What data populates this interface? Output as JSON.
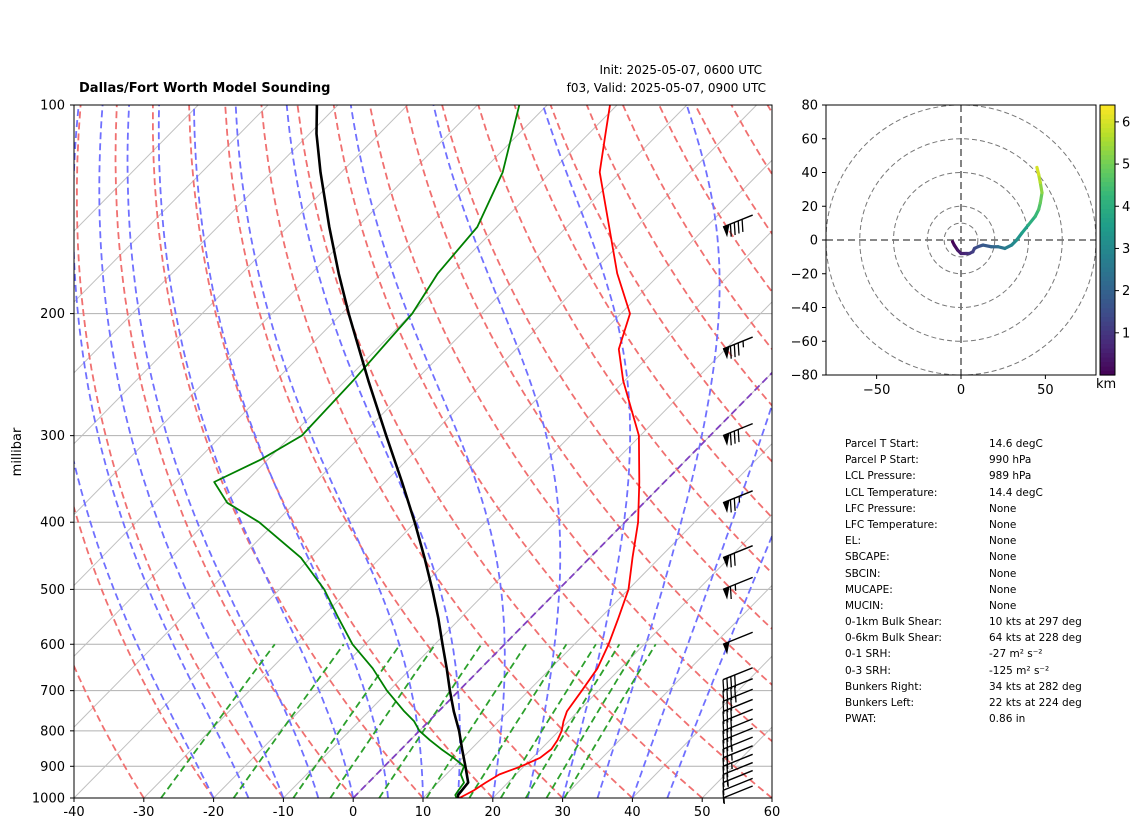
{
  "header": {
    "title": "Dallas/Fort Worth Model Sounding",
    "init": "Init: 2025-05-07, 0600 UTC",
    "valid": "f03, Valid: 2025-05-07, 0900 UTC"
  },
  "colors": {
    "temperature": "#ff0000",
    "dewpoint": "#008000",
    "parcel": "#000000",
    "dry_adiabat": "#f07070",
    "moist_adiabat": "#7070ff",
    "mixing_ratio": "#2ca02c",
    "isotherm": "#c0c0c0",
    "freezing": "#8040c0"
  },
  "chart_data": [
    {
      "type": "line",
      "subtype": "skew-t log-p",
      "title": "Dallas/Fort Worth Model Sounding",
      "xlabel": "",
      "ylabel": "millibar",
      "xlim": [
        -40,
        60
      ],
      "ylim": [
        1000,
        100
      ],
      "yscale": "log",
      "x_ticks": [
        -40,
        -30,
        -20,
        -10,
        0,
        10,
        20,
        30,
        40,
        50,
        60
      ],
      "y_ticks": [
        1000,
        900,
        800,
        700,
        600,
        500,
        400,
        300,
        200,
        100
      ],
      "grid": true,
      "series": [
        {
          "variable": "temperature",
          "pressure": [
            1000,
            990,
            975,
            950,
            925,
            900,
            875,
            850,
            825,
            800,
            775,
            750,
            700,
            650,
            600,
            550,
            500,
            450,
            400,
            350,
            300,
            250,
            225,
            200,
            175,
            150,
            125,
            110,
            100
          ],
          "values": [
            15.2,
            15.6,
            16.2,
            16.8,
            17.6,
            19.6,
            21.1,
            21.5,
            21.1,
            20.4,
            19.3,
            18.4,
            17.6,
            16.7,
            14.9,
            12.6,
            10.0,
            6.1,
            1.9,
            -3.6,
            -10.2,
            -20.2,
            -25.3,
            -28.7,
            -36.2,
            -43.9,
            -53.0,
            -57.6,
            -61.0
          ]
        },
        {
          "variable": "dewpoint",
          "pressure": [
            1000,
            990,
            975,
            950,
            925,
            900,
            875,
            850,
            825,
            800,
            775,
            750,
            700,
            650,
            600,
            550,
            500,
            450,
            400,
            375,
            350,
            325,
            300,
            250,
            200,
            175,
            150,
            125,
            100
          ],
          "values": [
            14.8,
            14.2,
            14.0,
            13.7,
            12.1,
            11.4,
            8.7,
            5.7,
            2.8,
            0.0,
            -2.1,
            -4.9,
            -10.3,
            -15.5,
            -21.8,
            -27.5,
            -33.6,
            -41.4,
            -52.4,
            -59.7,
            -64.5,
            -61.0,
            -58.5,
            -58.9,
            -59.9,
            -61.9,
            -62.8,
            -66.9,
            -74.0
          ]
        },
        {
          "variable": "parcel",
          "pressure": [
            1000,
            990,
            950,
            900,
            850,
            800,
            750,
            700,
            650,
            600,
            550,
            500,
            450,
            400,
            350,
            300,
            250,
            200,
            175,
            150,
            125,
            110,
            100
          ],
          "values": [
            15.0,
            14.6,
            14.3,
            11.6,
            8.7,
            5.7,
            2.2,
            -1.3,
            -4.9,
            -8.9,
            -13.2,
            -18.1,
            -23.7,
            -30.1,
            -37.6,
            -46.4,
            -56.7,
            -69.0,
            -76.1,
            -84.0,
            -93.0,
            -99.0,
            -103.0
          ]
        }
      ],
      "wind_barbs": [
        {
          "pressure": 1000,
          "kts": 5
        },
        {
          "pressure": 975,
          "kts": 10
        },
        {
          "pressure": 950,
          "kts": 15
        },
        {
          "pressure": 925,
          "kts": 20
        },
        {
          "pressure": 900,
          "kts": 25
        },
        {
          "pressure": 875,
          "kts": 25
        },
        {
          "pressure": 850,
          "kts": 25
        },
        {
          "pressure": 825,
          "kts": 30
        },
        {
          "pressure": 800,
          "kts": 30
        },
        {
          "pressure": 775,
          "kts": 30
        },
        {
          "pressure": 750,
          "kts": 30
        },
        {
          "pressure": 725,
          "kts": 35
        },
        {
          "pressure": 700,
          "kts": 40
        },
        {
          "pressure": 675,
          "kts": 40
        },
        {
          "pressure": 600,
          "kts": 50
        },
        {
          "pressure": 500,
          "kts": 65
        },
        {
          "pressure": 450,
          "kts": 70
        },
        {
          "pressure": 375,
          "kts": 75
        },
        {
          "pressure": 300,
          "kts": 80
        },
        {
          "pressure": 225,
          "kts": 85
        },
        {
          "pressure": 150,
          "kts": 90
        }
      ]
    },
    {
      "type": "line",
      "subtype": "hodograph",
      "xlim": [
        -80,
        80
      ],
      "ylim": [
        -80,
        80
      ],
      "x_ticks": [
        -50,
        0,
        50
      ],
      "y_ticks": [
        80,
        60,
        40,
        20,
        0,
        -20,
        -40,
        -60,
        -80
      ],
      "rings": [
        10,
        20,
        40,
        60,
        80
      ],
      "colorbar": {
        "ticks": [
          1,
          2,
          3,
          4,
          5,
          6
        ],
        "min": 0,
        "max": 6.4,
        "label": "km"
      },
      "u": [
        -5,
        -4,
        -2,
        0,
        3,
        5,
        7,
        8,
        10,
        13,
        18,
        22,
        26,
        30,
        33,
        36,
        40,
        44,
        46,
        47,
        48,
        47,
        46,
        45
      ],
      "v": [
        -1,
        -3,
        -6,
        -8,
        -8,
        -8,
        -7,
        -5,
        -4,
        -3,
        -4,
        -4,
        -5,
        -3,
        0,
        4,
        9,
        14,
        18,
        22,
        28,
        34,
        39,
        43
      ],
      "height_km": [
        0,
        0.2,
        0.4,
        0.6,
        0.8,
        1.0,
        1.2,
        1.4,
        1.6,
        1.8,
        2.1,
        2.4,
        2.7,
        3.0,
        3.3,
        3.6,
        4.0,
        4.3,
        4.6,
        4.9,
        5.3,
        5.7,
        6.0,
        6.2
      ]
    }
  ],
  "indices": [
    {
      "label": "Parcel T Start:",
      "value": "14.6 degC"
    },
    {
      "label": "Parcel P Start:",
      "value": "990 hPa"
    },
    {
      "label": "LCL Pressure:",
      "value": "989 hPa"
    },
    {
      "label": "LCL Temperature:",
      "value": "14.4 degC"
    },
    {
      "label": "LFC Pressure:",
      "value": "None"
    },
    {
      "label": "LFC Temperature:",
      "value": "None"
    },
    {
      "label": "EL:",
      "value": "None"
    },
    {
      "label": "SBCAPE:",
      "value": "None"
    },
    {
      "label": "SBCIN:",
      "value": "None"
    },
    {
      "label": "MUCAPE:",
      "value": "None"
    },
    {
      "label": "MUCIN:",
      "value": "None"
    },
    {
      "label": "0-1km Bulk Shear:",
      "value": "10 kts at 297 deg"
    },
    {
      "label": "0-6km Bulk Shear:",
      "value": "64 kts at 228 deg"
    },
    {
      "label": "0-1 SRH:",
      "value": "-27 m² s⁻²"
    },
    {
      "label": "0-3 SRH:",
      "value": "-125 m² s⁻²"
    },
    {
      "label": "Bunkers Right:",
      "value": "34 kts at 282 deg"
    },
    {
      "label": "Bunkers Left:",
      "value": "22 kts at 224 deg"
    },
    {
      "label": "PWAT:",
      "value": "0.86 in"
    }
  ]
}
